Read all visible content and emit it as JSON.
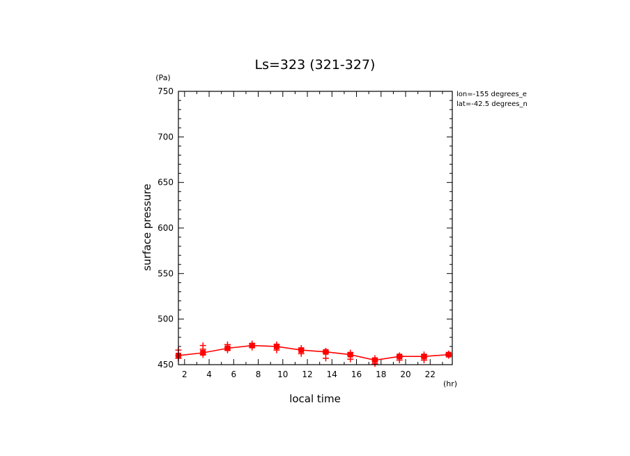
{
  "chart_data": {
    "type": "line",
    "title": "Ls=323 (321-327)",
    "xlabel": "local time",
    "ylabel": "surface pressure",
    "x_unit": "(hr)",
    "y_unit": "(Pa)",
    "xlim": [
      1.5,
      23.8
    ],
    "ylim": [
      450,
      750
    ],
    "x_ticks": [
      2,
      4,
      6,
      8,
      10,
      12,
      14,
      16,
      18,
      20,
      22
    ],
    "y_ticks": [
      450,
      500,
      550,
      600,
      650,
      700,
      750
    ],
    "annotations": [
      "lon=-155 degrees_e",
      "lat=-42.5 degrees_n"
    ],
    "line_color": "#ff0000",
    "mean_series": {
      "x": [
        1.5,
        3.5,
        5.5,
        7.5,
        9.5,
        11.5,
        13.5,
        15.5,
        17.5,
        19.5,
        21.5,
        23.5
      ],
      "y": [
        460,
        463,
        468,
        471,
        470,
        466,
        464,
        461,
        455,
        459,
        459,
        461
      ]
    },
    "samples": [
      {
        "x": 1.5,
        "y": 466
      },
      {
        "x": 1.5,
        "y": 460
      },
      {
        "x": 1.5,
        "y": 457
      },
      {
        "x": 3.5,
        "y": 471
      },
      {
        "x": 3.5,
        "y": 467
      },
      {
        "x": 3.5,
        "y": 461
      },
      {
        "x": 5.5,
        "y": 472
      },
      {
        "x": 5.5,
        "y": 469
      },
      {
        "x": 5.5,
        "y": 466
      },
      {
        "x": 7.5,
        "y": 473
      },
      {
        "x": 7.5,
        "y": 471
      },
      {
        "x": 7.5,
        "y": 469
      },
      {
        "x": 9.5,
        "y": 472
      },
      {
        "x": 9.5,
        "y": 470
      },
      {
        "x": 9.5,
        "y": 466
      },
      {
        "x": 11.5,
        "y": 468
      },
      {
        "x": 11.5,
        "y": 466
      },
      {
        "x": 11.5,
        "y": 462
      },
      {
        "x": 13.5,
        "y": 465
      },
      {
        "x": 13.5,
        "y": 463
      },
      {
        "x": 13.5,
        "y": 457
      },
      {
        "x": 15.5,
        "y": 463
      },
      {
        "x": 15.5,
        "y": 460
      },
      {
        "x": 15.5,
        "y": 456
      },
      {
        "x": 17.5,
        "y": 457
      },
      {
        "x": 17.5,
        "y": 454
      },
      {
        "x": 17.5,
        "y": 451
      },
      {
        "x": 19.5,
        "y": 460
      },
      {
        "x": 19.5,
        "y": 458
      },
      {
        "x": 19.5,
        "y": 455
      },
      {
        "x": 21.5,
        "y": 461
      },
      {
        "x": 21.5,
        "y": 458
      },
      {
        "x": 21.5,
        "y": 455
      },
      {
        "x": 23.5,
        "y": 462
      },
      {
        "x": 23.5,
        "y": 460
      }
    ]
  }
}
